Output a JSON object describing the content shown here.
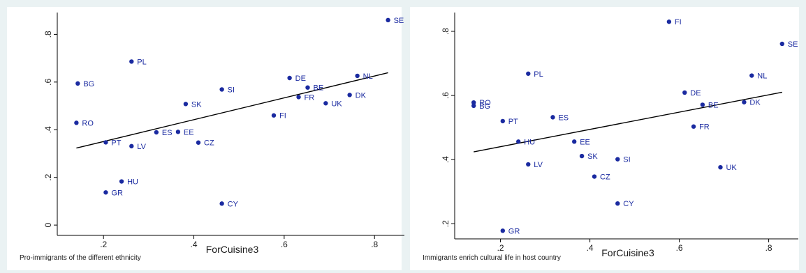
{
  "chart_data": [
    {
      "type": "scatter",
      "xlabel": "ForCuisine3",
      "ylabel": "",
      "caption": "Pro-immigrants of the different ethnicity",
      "xlim": [
        0.11,
        0.86
      ],
      "ylim": [
        -0.02,
        0.88
      ],
      "xticks": [
        0.2,
        0.4,
        0.6,
        0.8
      ],
      "xtick_labels": [
        ".2",
        ".4",
        ".6",
        ".8"
      ],
      "yticks": [
        0,
        0.2,
        0.4,
        0.6,
        0.8
      ],
      "ytick_labels": [
        "0",
        ".2",
        ".4",
        ".6",
        ".8"
      ],
      "grid": false,
      "points": [
        {
          "label": "SE",
          "x": 0.83,
          "y": 0.86
        },
        {
          "label": "PL",
          "x": 0.262,
          "y": 0.686
        },
        {
          "label": "BG",
          "x": 0.143,
          "y": 0.594
        },
        {
          "label": "DE",
          "x": 0.612,
          "y": 0.617
        },
        {
          "label": "NL",
          "x": 0.762,
          "y": 0.626
        },
        {
          "label": "BE",
          "x": 0.652,
          "y": 0.577
        },
        {
          "label": "SI",
          "x": 0.462,
          "y": 0.569
        },
        {
          "label": "DK",
          "x": 0.745,
          "y": 0.546
        },
        {
          "label": "FR",
          "x": 0.632,
          "y": 0.537
        },
        {
          "label": "SK",
          "x": 0.382,
          "y": 0.508
        },
        {
          "label": "UK",
          "x": 0.692,
          "y": 0.511
        },
        {
          "label": "FI",
          "x": 0.577,
          "y": 0.46
        },
        {
          "label": "RO",
          "x": 0.14,
          "y": 0.429
        },
        {
          "label": "ES",
          "x": 0.317,
          "y": 0.389
        },
        {
          "label": "EE",
          "x": 0.365,
          "y": 0.391
        },
        {
          "label": "PT",
          "x": 0.205,
          "y": 0.347
        },
        {
          "label": "LV",
          "x": 0.262,
          "y": 0.331
        },
        {
          "label": "CZ",
          "x": 0.41,
          "y": 0.346
        },
        {
          "label": "HU",
          "x": 0.24,
          "y": 0.183
        },
        {
          "label": "GR",
          "x": 0.205,
          "y": 0.137
        },
        {
          "label": "CY",
          "x": 0.462,
          "y": 0.09
        }
      ],
      "fit_line": {
        "x": [
          0.14,
          0.83
        ],
        "y": [
          0.323,
          0.639
        ]
      }
    },
    {
      "type": "scatter",
      "xlabel": "ForCuisine3",
      "ylabel": "",
      "caption": "Immigrants enrich cultural life in host country",
      "xlim": [
        0.11,
        0.86
      ],
      "ylim": [
        0.17,
        0.85
      ],
      "xticks": [
        0.2,
        0.4,
        0.6,
        0.8
      ],
      "xtick_labels": [
        ".2",
        ".4",
        ".6",
        ".8"
      ],
      "yticks": [
        0.2,
        0.4,
        0.6,
        0.8
      ],
      "ytick_labels": [
        ".2",
        ".4",
        ".6",
        ".8"
      ],
      "grid": false,
      "points": [
        {
          "label": "FI",
          "x": 0.577,
          "y": 0.83
        },
        {
          "label": "SE",
          "x": 0.83,
          "y": 0.761
        },
        {
          "label": "PL",
          "x": 0.262,
          "y": 0.668
        },
        {
          "label": "NL",
          "x": 0.762,
          "y": 0.662
        },
        {
          "label": "DE",
          "x": 0.612,
          "y": 0.609
        },
        {
          "label": "RO",
          "x": 0.14,
          "y": 0.578
        },
        {
          "label": "BG",
          "x": 0.14,
          "y": 0.568
        },
        {
          "label": "DK",
          "x": 0.745,
          "y": 0.579
        },
        {
          "label": "BE",
          "x": 0.652,
          "y": 0.571
        },
        {
          "label": "ES",
          "x": 0.317,
          "y": 0.532
        },
        {
          "label": "PT",
          "x": 0.205,
          "y": 0.52
        },
        {
          "label": "FR",
          "x": 0.632,
          "y": 0.503
        },
        {
          "label": "HU",
          "x": 0.24,
          "y": 0.456
        },
        {
          "label": "EE",
          "x": 0.365,
          "y": 0.456
        },
        {
          "label": "SK",
          "x": 0.382,
          "y": 0.411
        },
        {
          "label": "SI",
          "x": 0.462,
          "y": 0.401
        },
        {
          "label": "LV",
          "x": 0.262,
          "y": 0.385
        },
        {
          "label": "UK",
          "x": 0.692,
          "y": 0.376
        },
        {
          "label": "CZ",
          "x": 0.41,
          "y": 0.347
        },
        {
          "label": "CY",
          "x": 0.462,
          "y": 0.263
        },
        {
          "label": "GR",
          "x": 0.205,
          "y": 0.178
        }
      ],
      "fit_line": {
        "x": [
          0.14,
          0.83
        ],
        "y": [
          0.424,
          0.61
        ]
      }
    }
  ],
  "colors": {
    "marker": "#1a2aa0",
    "background": "#eaf2f3",
    "plot": "#ffffff",
    "fit_line": "#000000"
  }
}
